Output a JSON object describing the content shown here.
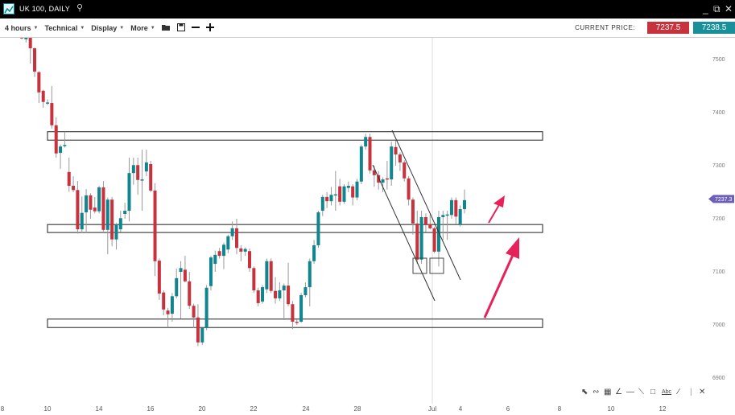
{
  "window": {
    "title": "UK 100, DAILY",
    "icons": [
      "chart-logo-icon",
      "search-icon",
      "minimize-icon",
      "popout-icon",
      "close-icon"
    ]
  },
  "toolbar": {
    "timeframe": "4 hours",
    "technical": "Technical",
    "display": "Display",
    "more": "More",
    "current_price_label": "CURRENT PRICE:",
    "sell_price": "7237.5",
    "buy_price": "7238.5",
    "sell_color": "#c8323c",
    "buy_color": "#17909a"
  },
  "chart_data": {
    "type": "candlestick",
    "instrument": "UK 100",
    "y_ticks": [
      7500,
      7400,
      7300,
      7200,
      7100,
      7000,
      6900
    ],
    "ylim": [
      6850,
      7540
    ],
    "x_ticks": [
      "8",
      "10",
      "14",
      "16",
      "20",
      "22",
      "24",
      "28",
      "Jul",
      "4",
      "6",
      "8",
      "10",
      "12"
    ],
    "last_price_label": "7237.3",
    "up_color": "#0f8590",
    "down_color": "#c8323c",
    "marker_color": "#6c5fb5",
    "arrow_color": "#e8215a",
    "zones": [
      [
        7348,
        7364
      ],
      [
        7174,
        7189
      ],
      [
        6995,
        7011
      ]
    ],
    "candles": [
      [
        7542,
        7545,
        7538,
        7540
      ],
      [
        7538,
        7546,
        7532,
        7542
      ],
      [
        7542,
        7545,
        7492,
        7521
      ],
      [
        7521,
        7523,
        7467,
        7477
      ],
      [
        7476,
        7478,
        7418,
        7438
      ],
      [
        7441,
        7443,
        7409,
        7420
      ],
      [
        7418,
        7425,
        7414,
        7419
      ],
      [
        7418,
        7450,
        7370,
        7376
      ],
      [
        7376,
        7391,
        7315,
        7323
      ],
      [
        7324,
        7340,
        7294,
        7336
      ],
      [
        7337,
        7364,
        7334,
        7339
      ],
      [
        7288,
        7315,
        7251,
        7262
      ],
      [
        7262,
        7280,
        7250,
        7254
      ],
      [
        7254,
        7271,
        7172,
        7180
      ],
      [
        7180,
        7242,
        7173,
        7211
      ],
      [
        7212,
        7256,
        7173,
        7244
      ],
      [
        7244,
        7248,
        7200,
        7217
      ],
      [
        7221,
        7241,
        7210,
        7214
      ],
      [
        7214,
        7262,
        7210,
        7259
      ],
      [
        7259,
        7271,
        7176,
        7179
      ],
      [
        7179,
        7240,
        7133,
        7236
      ],
      [
        7236,
        7241,
        7148,
        7161
      ],
      [
        7161,
        7192,
        7142,
        7189
      ],
      [
        7180,
        7215,
        7175,
        7201
      ],
      [
        7209,
        7230,
        7200,
        7215
      ],
      [
        7215,
        7315,
        7195,
        7286
      ],
      [
        7286,
        7315,
        7264,
        7301
      ],
      [
        7301,
        7315,
        7245,
        7273
      ],
      [
        7272,
        7330,
        7215,
        7274
      ],
      [
        7289,
        7330,
        7280,
        7306
      ],
      [
        7303,
        7309,
        7250,
        7253
      ],
      [
        7253,
        7267,
        7092,
        7120
      ],
      [
        7121,
        7125,
        7047,
        7059
      ],
      [
        7061,
        7065,
        7018,
        7029
      ],
      [
        7027,
        7032,
        6995,
        7020
      ],
      [
        7021,
        7060,
        7006,
        7054
      ],
      [
        7054,
        7106,
        7050,
        7088
      ],
      [
        7100,
        7120,
        7012,
        7107
      ],
      [
        7104,
        7130,
        7080,
        7082
      ],
      [
        7082,
        7100,
        7030,
        7036
      ],
      [
        7036,
        7040,
        6994,
        7014
      ],
      [
        7014,
        7039,
        6960,
        6967
      ],
      [
        6967,
        6994,
        6962,
        6994
      ],
      [
        6994,
        7075,
        6990,
        7070
      ],
      [
        7073,
        7130,
        7065,
        7127
      ],
      [
        7115,
        7140,
        7100,
        7132
      ],
      [
        7139,
        7145,
        7125,
        7130
      ],
      [
        7130,
        7155,
        7105,
        7151
      ],
      [
        7142,
        7170,
        7135,
        7167
      ],
      [
        7167,
        7195,
        7160,
        7182
      ],
      [
        7182,
        7200,
        7133,
        7145
      ],
      [
        7144,
        7150,
        7120,
        7138
      ],
      [
        7138,
        7146,
        7130,
        7143
      ],
      [
        7139,
        7144,
        7100,
        7107
      ],
      [
        7107,
        7110,
        7060,
        7065
      ],
      [
        7065,
        7070,
        7035,
        7041
      ],
      [
        7044,
        7075,
        7040,
        7071
      ],
      [
        7067,
        7125,
        7060,
        7120
      ],
      [
        7120,
        7125,
        7060,
        7064
      ],
      [
        7064,
        7090,
        7040,
        7050
      ],
      [
        7050,
        7080,
        7045,
        7065
      ],
      [
        7065,
        7078,
        7009,
        7074
      ],
      [
        7074,
        7117,
        7035,
        7039
      ],
      [
        7039,
        7045,
        6992,
        7006
      ],
      [
        7006,
        7010,
        7000,
        7004
      ],
      [
        7006,
        7060,
        7004,
        7056
      ],
      [
        7056,
        7080,
        7052,
        7071
      ],
      [
        7071,
        7125,
        7035,
        7120
      ],
      [
        7120,
        7160,
        7115,
        7150
      ],
      [
        7150,
        7215,
        7145,
        7212
      ],
      [
        7215,
        7245,
        7205,
        7241
      ],
      [
        7241,
        7250,
        7220,
        7233
      ],
      [
        7233,
        7260,
        7225,
        7245
      ],
      [
        7244,
        7290,
        7215,
        7246
      ],
      [
        7261,
        7275,
        7225,
        7232
      ],
      [
        7232,
        7265,
        7228,
        7261
      ],
      [
        7258,
        7270,
        7250,
        7262
      ],
      [
        7261,
        7265,
        7225,
        7240
      ],
      [
        7240,
        7275,
        7235,
        7270
      ],
      [
        7270,
        7340,
        7265,
        7336
      ],
      [
        7336,
        7360,
        7330,
        7354
      ],
      [
        7354,
        7360,
        7285,
        7291
      ],
      [
        7291,
        7300,
        7260,
        7282
      ],
      [
        7282,
        7290,
        7255,
        7268
      ],
      [
        7268,
        7278,
        7250,
        7274
      ],
      [
        7276,
        7309,
        7255,
        7275
      ],
      [
        7274,
        7345,
        7262,
        7336
      ],
      [
        7335,
        7347,
        7300,
        7321
      ],
      [
        7321,
        7325,
        7290,
        7306
      ],
      [
        7306,
        7310,
        7270,
        7276
      ],
      [
        7276,
        7280,
        7225,
        7236
      ],
      [
        7236,
        7240,
        7170,
        7191
      ],
      [
        7191,
        7215,
        7115,
        7123
      ],
      [
        7123,
        7215,
        7115,
        7203
      ],
      [
        7203,
        7210,
        7175,
        7188
      ],
      [
        7190,
        7210,
        7180,
        7182
      ],
      [
        7182,
        7185,
        7135,
        7138
      ],
      [
        7138,
        7215,
        7110,
        7203
      ],
      [
        7203,
        7215,
        7160,
        7207
      ],
      [
        7206,
        7215,
        7160,
        7208
      ],
      [
        7207,
        7240,
        7200,
        7235
      ],
      [
        7235,
        7240,
        7190,
        7204
      ],
      [
        7190,
        7225,
        7185,
        7218
      ],
      [
        7218,
        7255,
        7210,
        7235
      ]
    ]
  },
  "drawing_tools": [
    "arrow-tool-icon",
    "curve-tool-icon",
    "fibonacci-tool-icon",
    "fan-tool-icon",
    "horizontal-line-tool-icon",
    "trend-line-tool-icon",
    "rectangle-tool-icon",
    "text-tool-icon",
    "line-tool-icon",
    "separator",
    "delete-drawings-icon"
  ],
  "text_tool_label": "Abc"
}
